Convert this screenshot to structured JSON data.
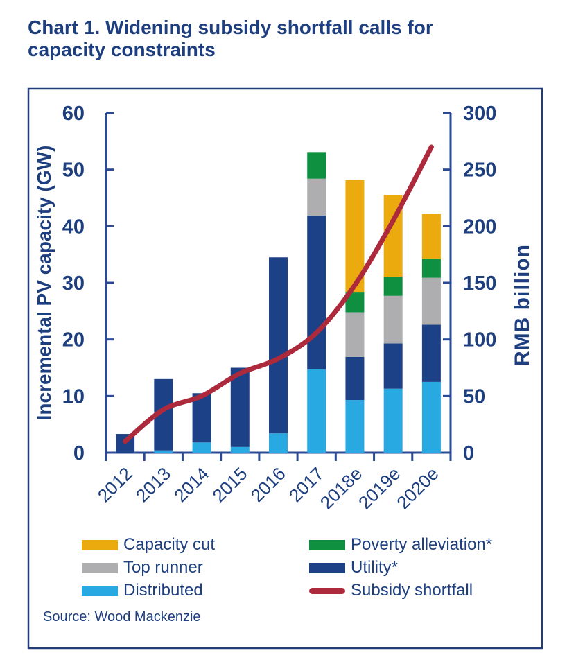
{
  "title": {
    "line1": "Chart 1. Widening subsidy shortfall calls for",
    "line2": "capacity constraints"
  },
  "source": "Source: Wood Mackenzie",
  "colors": {
    "navy_text": "#1D3E7F",
    "axis": "#2B4A96",
    "panel_border": "#223C7A",
    "distributed": "#29A9E1",
    "utility": "#1C4187",
    "top_runner": "#AEAEB0",
    "poverty": "#0E9040",
    "capacity_cut": "#EBAA0E",
    "line_red": "#AC2A3C"
  },
  "chart_data": {
    "type": "bar",
    "subtype": "stacked-bar-with-line",
    "categories": [
      "2012",
      "2013",
      "2014",
      "2015",
      "2016",
      "2017",
      "2018e",
      "2019e",
      "2020e"
    ],
    "series": [
      {
        "name": "Distributed",
        "color_key": "distributed",
        "values": [
          0,
          0.4,
          1.8,
          1.0,
          3.4,
          14.7,
          9.3,
          11.3,
          12.5
        ]
      },
      {
        "name": "Utility*",
        "color_key": "utility",
        "values": [
          3.3,
          12.6,
          8.7,
          14.0,
          31.1,
          27.2,
          7.6,
          8.0,
          10.1
        ]
      },
      {
        "name": "Top runner",
        "color_key": "top_runner",
        "values": [
          0,
          0,
          0,
          0,
          0,
          6.5,
          7.9,
          8.4,
          8.3
        ]
      },
      {
        "name": "Poverty alleviation*",
        "color_key": "poverty",
        "values": [
          0,
          0,
          0,
          0,
          0,
          4.7,
          3.6,
          3.4,
          3.4
        ]
      },
      {
        "name": "Capacity cut",
        "color_key": "capacity_cut",
        "values": [
          0,
          0,
          0,
          0,
          0,
          0,
          19.8,
          14.4,
          7.9
        ]
      }
    ],
    "line_series": {
      "name": "Subsidy shortfall",
      "color_key": "line_red",
      "axis": "right",
      "values": [
        10,
        38,
        50,
        70,
        83,
        106,
        148,
        205,
        270
      ]
    },
    "left_axis": {
      "label": "Incremental PV capacity (GW)",
      "min": 0,
      "max": 60,
      "step": 10
    },
    "right_axis": {
      "label": "RMB billion",
      "min": 0,
      "max": 300,
      "step": 50
    },
    "grid": false,
    "legend_position": "bottom"
  },
  "legend": {
    "columns": [
      {
        "items": [
          {
            "swatch": "rect",
            "color_key": "capacity_cut",
            "label": "Capacity cut"
          },
          {
            "swatch": "rect",
            "color_key": "top_runner",
            "label": "Top runner"
          },
          {
            "swatch": "rect",
            "color_key": "distributed",
            "label": "Distributed"
          }
        ]
      },
      {
        "items": [
          {
            "swatch": "rect",
            "color_key": "poverty",
            "label": "Poverty alleviation*"
          },
          {
            "swatch": "rect",
            "color_key": "utility",
            "label": "Utility*"
          },
          {
            "swatch": "line",
            "color_key": "line_red",
            "label": "Subsidy shortfall"
          }
        ]
      }
    ]
  }
}
